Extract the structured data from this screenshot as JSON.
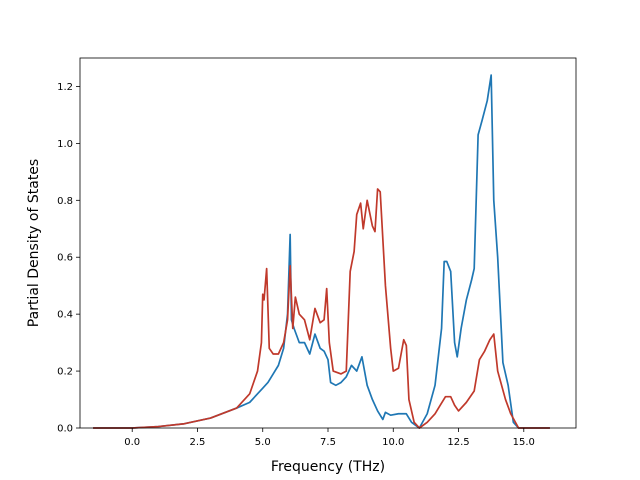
{
  "chart_data": {
    "type": "line",
    "title": "",
    "xlabel": "Frequency (THz)",
    "ylabel": "Partial Density of States",
    "xlim": [
      -2.0,
      17.0
    ],
    "ylim": [
      0.0,
      1.3
    ],
    "xticks": [
      0.0,
      2.5,
      5.0,
      7.5,
      10.0,
      12.5,
      15.0
    ],
    "xtick_labels": [
      "0.0",
      "2.5",
      "5.0",
      "7.5",
      "10.0",
      "12.5",
      "15.0"
    ],
    "yticks": [
      0.0,
      0.2,
      0.4,
      0.6,
      0.8,
      1.0,
      1.2
    ],
    "ytick_labels": [
      "0.0",
      "0.2",
      "0.4",
      "0.6",
      "0.8",
      "1.0",
      "1.2"
    ],
    "grid": false,
    "legend": "none",
    "series": [
      {
        "color": "#1f77b4",
        "points": [
          [
            -1.5,
            0.0
          ],
          [
            0.0,
            0.0
          ],
          [
            1.0,
            0.005
          ],
          [
            2.0,
            0.015
          ],
          [
            3.0,
            0.035
          ],
          [
            4.0,
            0.07
          ],
          [
            4.5,
            0.09
          ],
          [
            4.8,
            0.12
          ],
          [
            5.0,
            0.14
          ],
          [
            5.2,
            0.16
          ],
          [
            5.4,
            0.19
          ],
          [
            5.6,
            0.22
          ],
          [
            5.8,
            0.28
          ],
          [
            5.95,
            0.4
          ],
          [
            6.05,
            0.68
          ],
          [
            6.1,
            0.38
          ],
          [
            6.2,
            0.35
          ],
          [
            6.4,
            0.3
          ],
          [
            6.6,
            0.3
          ],
          [
            6.8,
            0.26
          ],
          [
            7.0,
            0.33
          ],
          [
            7.2,
            0.28
          ],
          [
            7.35,
            0.27
          ],
          [
            7.5,
            0.24
          ],
          [
            7.6,
            0.16
          ],
          [
            7.8,
            0.15
          ],
          [
            8.0,
            0.16
          ],
          [
            8.2,
            0.18
          ],
          [
            8.4,
            0.22
          ],
          [
            8.6,
            0.2
          ],
          [
            8.8,
            0.25
          ],
          [
            9.0,
            0.15
          ],
          [
            9.2,
            0.1
          ],
          [
            9.4,
            0.06
          ],
          [
            9.6,
            0.03
          ],
          [
            9.7,
            0.055
          ],
          [
            9.9,
            0.045
          ],
          [
            10.2,
            0.05
          ],
          [
            10.5,
            0.05
          ],
          [
            10.7,
            0.02
          ],
          [
            11.0,
            0.0
          ],
          [
            11.3,
            0.05
          ],
          [
            11.6,
            0.15
          ],
          [
            11.85,
            0.35
          ],
          [
            11.95,
            0.585
          ],
          [
            12.05,
            0.585
          ],
          [
            12.2,
            0.55
          ],
          [
            12.35,
            0.3
          ],
          [
            12.45,
            0.25
          ],
          [
            12.6,
            0.35
          ],
          [
            12.8,
            0.45
          ],
          [
            13.0,
            0.52
          ],
          [
            13.1,
            0.56
          ],
          [
            13.25,
            1.03
          ],
          [
            13.4,
            1.08
          ],
          [
            13.6,
            1.15
          ],
          [
            13.75,
            1.24
          ],
          [
            13.85,
            0.8
          ],
          [
            14.0,
            0.6
          ],
          [
            14.2,
            0.23
          ],
          [
            14.4,
            0.15
          ],
          [
            14.6,
            0.02
          ],
          [
            14.8,
            0.0
          ],
          [
            16.0,
            0.0
          ]
        ]
      },
      {
        "color": "#c0392b",
        "points": [
          [
            -1.5,
            0.0
          ],
          [
            0.0,
            0.0
          ],
          [
            1.0,
            0.005
          ],
          [
            2.0,
            0.015
          ],
          [
            3.0,
            0.035
          ],
          [
            4.0,
            0.07
          ],
          [
            4.5,
            0.12
          ],
          [
            4.8,
            0.2
          ],
          [
            4.95,
            0.3
          ],
          [
            5.0,
            0.47
          ],
          [
            5.05,
            0.45
          ],
          [
            5.15,
            0.56
          ],
          [
            5.25,
            0.28
          ],
          [
            5.4,
            0.26
          ],
          [
            5.6,
            0.26
          ],
          [
            5.8,
            0.3
          ],
          [
            5.95,
            0.38
          ],
          [
            6.05,
            0.57
          ],
          [
            6.15,
            0.35
          ],
          [
            6.25,
            0.46
          ],
          [
            6.4,
            0.4
          ],
          [
            6.6,
            0.38
          ],
          [
            6.8,
            0.31
          ],
          [
            7.0,
            0.42
          ],
          [
            7.2,
            0.37
          ],
          [
            7.35,
            0.38
          ],
          [
            7.45,
            0.49
          ],
          [
            7.55,
            0.3
          ],
          [
            7.7,
            0.2
          ],
          [
            8.0,
            0.19
          ],
          [
            8.2,
            0.2
          ],
          [
            8.35,
            0.55
          ],
          [
            8.5,
            0.62
          ],
          [
            8.6,
            0.75
          ],
          [
            8.75,
            0.79
          ],
          [
            8.85,
            0.7
          ],
          [
            9.0,
            0.8
          ],
          [
            9.2,
            0.71
          ],
          [
            9.3,
            0.69
          ],
          [
            9.4,
            0.84
          ],
          [
            9.5,
            0.83
          ],
          [
            9.7,
            0.5
          ],
          [
            9.9,
            0.28
          ],
          [
            10.0,
            0.2
          ],
          [
            10.2,
            0.21
          ],
          [
            10.4,
            0.31
          ],
          [
            10.5,
            0.29
          ],
          [
            10.6,
            0.1
          ],
          [
            10.8,
            0.02
          ],
          [
            11.0,
            0.0
          ],
          [
            11.3,
            0.02
          ],
          [
            11.6,
            0.05
          ],
          [
            11.8,
            0.08
          ],
          [
            12.0,
            0.11
          ],
          [
            12.2,
            0.11
          ],
          [
            12.35,
            0.08
          ],
          [
            12.5,
            0.06
          ],
          [
            12.8,
            0.09
          ],
          [
            13.1,
            0.13
          ],
          [
            13.3,
            0.24
          ],
          [
            13.5,
            0.27
          ],
          [
            13.7,
            0.31
          ],
          [
            13.85,
            0.33
          ],
          [
            14.0,
            0.2
          ],
          [
            14.3,
            0.1
          ],
          [
            14.5,
            0.05
          ],
          [
            14.8,
            0.0
          ],
          [
            16.0,
            0.0
          ]
        ]
      }
    ]
  }
}
